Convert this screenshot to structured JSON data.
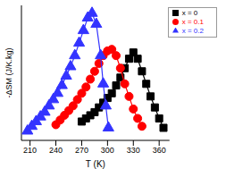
{
  "chart_data": {
    "type": "line",
    "x_label": "T (K)",
    "y_label": "-ΔSM (J/K.kg)",
    "xlim": [
      200,
      372
    ],
    "xticks": [
      210,
      240,
      270,
      300,
      330,
      360
    ],
    "ylim": [
      0.5,
      4.8
    ],
    "tick_labels": "x",
    "legend": "upper right",
    "series": [
      {
        "name": "x = 0",
        "color": "#000000",
        "marker": "square",
        "line_style": "solid",
        "x": [
          270,
          275,
          280,
          285,
          290,
          295,
          300,
          305,
          310,
          315,
          320,
          325,
          330,
          335,
          340,
          345,
          350,
          355,
          360,
          365
        ],
        "values": [
          1.1,
          1.2,
          1.3,
          1.4,
          1.55,
          1.7,
          1.85,
          2.0,
          2.25,
          2.5,
          2.8,
          3.1,
          3.3,
          3.1,
          2.7,
          2.3,
          1.9,
          1.55,
          1.2,
          0.9
        ]
      },
      {
        "name": "x = 0.1",
        "color": "#ff0000",
        "marker": "circle",
        "line_style": "solid",
        "x": [
          240,
          245,
          250,
          255,
          260,
          265,
          270,
          275,
          280,
          285,
          290,
          295,
          300,
          305,
          310,
          315,
          320,
          325,
          330,
          335,
          340
        ],
        "values": [
          1.0,
          1.15,
          1.3,
          1.45,
          1.6,
          1.8,
          2.0,
          2.2,
          2.45,
          2.7,
          2.95,
          3.2,
          3.35,
          3.4,
          3.2,
          2.8,
          2.3,
          1.9,
          1.5,
          1.2,
          0.95
        ]
      },
      {
        "name": "x = 0.2",
        "color": "#3333ff",
        "marker": "triangle",
        "line_style": "solid",
        "x": [
          207,
          212,
          217,
          222,
          227,
          232,
          237,
          242,
          247,
          252,
          257,
          262,
          267,
          272,
          277,
          282,
          287,
          292,
          295,
          298,
          301
        ],
        "values": [
          0.8,
          0.95,
          1.1,
          1.25,
          1.4,
          1.6,
          1.8,
          2.0,
          2.25,
          2.55,
          2.85,
          3.2,
          3.6,
          4.0,
          4.4,
          4.55,
          4.2,
          3.2,
          2.3,
          1.6,
          0.9
        ]
      }
    ]
  }
}
